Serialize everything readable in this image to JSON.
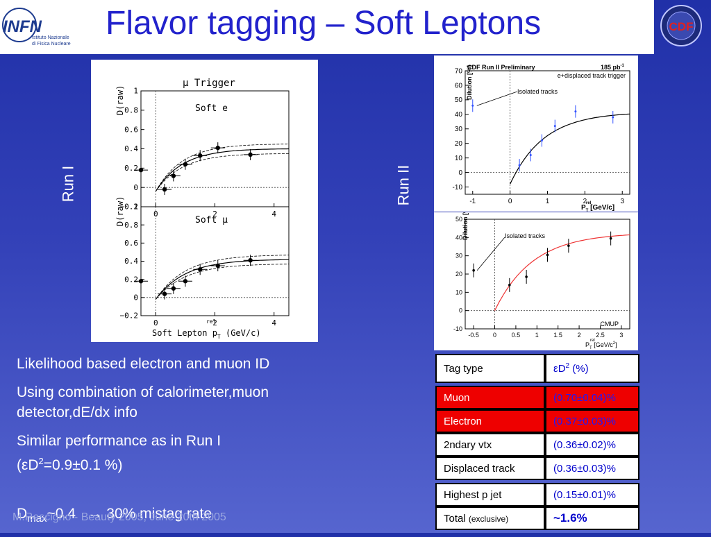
{
  "title": "Flavor tagging – Soft Leptons",
  "logo_left": {
    "text": "INFN",
    "sub1": "Istituto Nazionale",
    "sub2": "di Fisica Nucleare"
  },
  "logo_right": {
    "text": "CDF"
  },
  "run1_label": "Run I",
  "run2_label": "Run II",
  "run1_plot": {
    "header": "μ Trigger",
    "top_panel": "Soft e",
    "bottom_panel": "Soft μ",
    "ylabel": "D(raw)",
    "xlabel": "Soft Lepton p",
    "xlabel_sup": "rel",
    "xlabel_sub": "T",
    "xlabel_unit": "(GeV/c)"
  },
  "run2_plot_top": {
    "title": "CDF Run II Preliminary",
    "lumi": "185 pb",
    "lumi_sup": "-1",
    "trigger": "e+displaced track trigger",
    "annotation": "Isolated tracks",
    "ylabel": "Dilution [%]",
    "xlabel": "P",
    "xlabel_sup": "rel",
    "xlabel_sub": "T",
    "xlabel_unit": "[GeV/c]"
  },
  "run2_plot_bottom": {
    "annotation": "Isolated tracks",
    "tag": "CMUP",
    "ylabel": "Dilution [%]",
    "xlabel": "P",
    "xlabel_sup": "rel",
    "xlabel_sub": "T",
    "xlabel_unit": "[GeV/c",
    "xlabel_unit_sup": "2",
    "xlabel_unit_end": "]"
  },
  "chart_data": [
    {
      "type": "scatter",
      "title": "μ Trigger — Soft e",
      "xlabel": "Soft Lepton p_T^rel (GeV/c)",
      "ylabel": "D(raw)",
      "xlim": [
        -0.5,
        4.5
      ],
      "ylim": [
        -0.2,
        1
      ],
      "xticks": [
        "0",
        "2",
        "4"
      ],
      "yticks": [
        "−0.2",
        "0",
        "0.2",
        "0.4",
        "0.6",
        "0.8",
        "1"
      ],
      "x": [
        -0.5,
        0.3,
        0.6,
        1.0,
        1.5,
        2.1,
        3.2
      ],
      "y": [
        0.18,
        -0.02,
        0.12,
        0.24,
        0.33,
        0.41,
        0.34
      ]
    },
    {
      "type": "scatter",
      "title": "μ Trigger — Soft μ",
      "xlabel": "Soft Lepton p_T^rel (GeV/c)",
      "ylabel": "D(raw)",
      "xlim": [
        -0.5,
        4.5
      ],
      "ylim": [
        -0.2,
        1
      ],
      "xticks": [
        "0",
        "2",
        "4"
      ],
      "yticks": [
        "−0.2",
        "0",
        "0.2",
        "0.4",
        "0.6",
        "0.8",
        "1"
      ],
      "x": [
        -0.5,
        0.3,
        0.6,
        1.0,
        1.5,
        2.1,
        3.2
      ],
      "y": [
        0.18,
        0.04,
        0.1,
        0.18,
        0.31,
        0.35,
        0.41
      ]
    },
    {
      "type": "scatter",
      "title": "CDF Run II Preliminary",
      "xlabel": "P_T^rel [GeV/c]",
      "ylabel": "Dilution [%]",
      "xlim": [
        -1.2,
        3.2
      ],
      "ylim": [
        -15,
        70
      ],
      "xticks": [
        "-1",
        "0",
        "1",
        "2",
        "3"
      ],
      "yticks": [
        "-10",
        "0",
        "10",
        "20",
        "30",
        "40",
        "50",
        "60",
        "70"
      ],
      "x": [
        -1.0,
        0.25,
        0.55,
        0.85,
        1.2,
        1.75,
        2.75
      ],
      "y": [
        46,
        5,
        12,
        22,
        32,
        42,
        38
      ]
    },
    {
      "type": "scatter",
      "title": "CMUP",
      "xlabel": "P_T^rel [GeV/c^2]",
      "ylabel": "Dilution [%]",
      "xlim": [
        -0.7,
        3.2
      ],
      "ylim": [
        -10,
        50
      ],
      "xticks": [
        "-0.5",
        "0",
        "0.5",
        "1",
        "1.5",
        "2",
        "2.5",
        "3"
      ],
      "yticks": [
        "-10",
        "0",
        "10",
        "20",
        "30",
        "40",
        "50"
      ],
      "x": [
        -0.5,
        0.35,
        0.75,
        1.25,
        1.75,
        2.75
      ],
      "y": [
        22,
        14,
        18.5,
        30.5,
        35.5,
        39.5
      ]
    }
  ],
  "bullets": [
    {
      "text": "Likelihood based electron and muon ID"
    },
    {
      "text": "Using combination of calorimeter,muon detector,dE/dx info"
    },
    {
      "line1": "Similar performance as in Run I",
      "line2_pre": "(",
      "line2_eps": "ε",
      "line2_d": "D",
      "line2_sup": "2",
      "line2_post": "=0.9±0.1 %)"
    },
    {
      "d": "D",
      "sub": "max",
      "rest": "~0.4   → 30% mistag rate"
    }
  ],
  "footer": "M.Rescigno - Beauty 2005,  June 20th 2005",
  "table": {
    "header": {
      "col1": "Tag type",
      "col2_eps": "ε",
      "col2_d": "D",
      "col2_sup": "2",
      "col2_rest": " (%)"
    },
    "rows": [
      {
        "type": "Muon",
        "value": "(0.70±0.04)%"
      },
      {
        "type": "Electron",
        "value": "(0.37±0.03)%"
      },
      {
        "type": "2ndary vtx",
        "value": "(0.36±0.02)%"
      },
      {
        "type": "Displaced track",
        "value": "(0.36±0.03)%"
      },
      {
        "type": "Highest p jet",
        "value": "(0.15±0.01)%"
      }
    ],
    "total": {
      "type": "Total",
      "qual": "(exclusive)",
      "value": "~1.6%"
    }
  }
}
